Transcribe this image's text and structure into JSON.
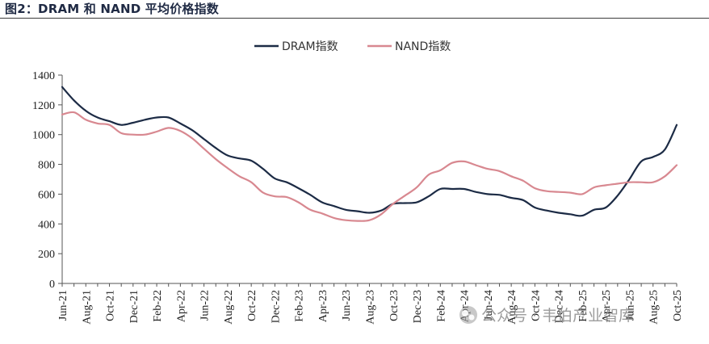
{
  "figure_title": "图2：DRAM 和 NAND 平均价格指数",
  "watermark": {
    "text": "公众号 · 韦伯产业智库",
    "icon": "wechat-icon"
  },
  "chart_data": {
    "type": "line",
    "title": "",
    "xlabel": "",
    "ylabel": "",
    "ylim": [
      0,
      1400
    ],
    "yticks": [
      0,
      200,
      400,
      600,
      800,
      1000,
      1200,
      1400
    ],
    "grid": false,
    "legend_position": "top-center",
    "x": [
      "Jun-21",
      "Jul-21",
      "Aug-21",
      "Sep-21",
      "Oct-21",
      "Nov-21",
      "Dec-21",
      "Jan-22",
      "Feb-22",
      "Mar-22",
      "Apr-22",
      "May-22",
      "Jun-22",
      "Jul-22",
      "Aug-22",
      "Sep-22",
      "Oct-22",
      "Nov-22",
      "Dec-22",
      "Jan-23",
      "Feb-23",
      "Mar-23",
      "Apr-23",
      "May-23",
      "Jun-23",
      "Jul-23",
      "Aug-23",
      "Sep-23",
      "Oct-23",
      "Nov-23",
      "Dec-23",
      "Jan-24",
      "Feb-24",
      "Mar-24",
      "Apr-24",
      "May-24",
      "Jun-24",
      "Jul-24",
      "Aug-24",
      "Sep-24",
      "Oct-24",
      "Nov-24",
      "Dec-24",
      "Jan-25",
      "Feb-25",
      "Mar-25",
      "Apr-25",
      "May-25",
      "Jun-25",
      "Jul-25",
      "Aug-25",
      "Sep-25",
      "Oct-25"
    ],
    "x_tick_labels": [
      "Jun-21",
      "Aug-21",
      "Oct-21",
      "Dec-21",
      "Feb-22",
      "Apr-22",
      "Jun-22",
      "Aug-22",
      "Oct-22",
      "Dec-22",
      "Feb-23",
      "Apr-23",
      "Jun-23",
      "Aug-23",
      "Oct-23",
      "Dec-23",
      "Feb-24",
      "Apr-24",
      "Jun-24",
      "Aug-24",
      "Oct-24",
      "Dec-24",
      "Feb-25",
      "Apr-25",
      "Jun-25",
      "Aug-25",
      "Oct-25"
    ],
    "series": [
      {
        "name": "DRAM指数",
        "color": "#1c2b45",
        "values": [
          1320,
          1230,
          1160,
          1115,
          1090,
          1065,
          1080,
          1100,
          1115,
          1115,
          1075,
          1030,
          970,
          910,
          860,
          840,
          825,
          770,
          705,
          680,
          640,
          595,
          545,
          520,
          495,
          485,
          475,
          490,
          535,
          540,
          545,
          585,
          635,
          635,
          635,
          615,
          600,
          595,
          575,
          560,
          510,
          490,
          475,
          465,
          455,
          495,
          510,
          590,
          700,
          820,
          850,
          900,
          1065
        ]
      },
      {
        "name": "NAND指数",
        "color": "#d88890",
        "values": [
          1135,
          1150,
          1100,
          1075,
          1065,
          1010,
          1000,
          1000,
          1020,
          1045,
          1025,
          975,
          905,
          835,
          775,
          720,
          680,
          610,
          585,
          580,
          545,
          495,
          470,
          440,
          425,
          420,
          425,
          465,
          535,
          590,
          645,
          730,
          760,
          810,
          820,
          795,
          770,
          755,
          720,
          690,
          640,
          620,
          615,
          610,
          600,
          645,
          660,
          670,
          680,
          680,
          680,
          720,
          795
        ]
      }
    ]
  }
}
